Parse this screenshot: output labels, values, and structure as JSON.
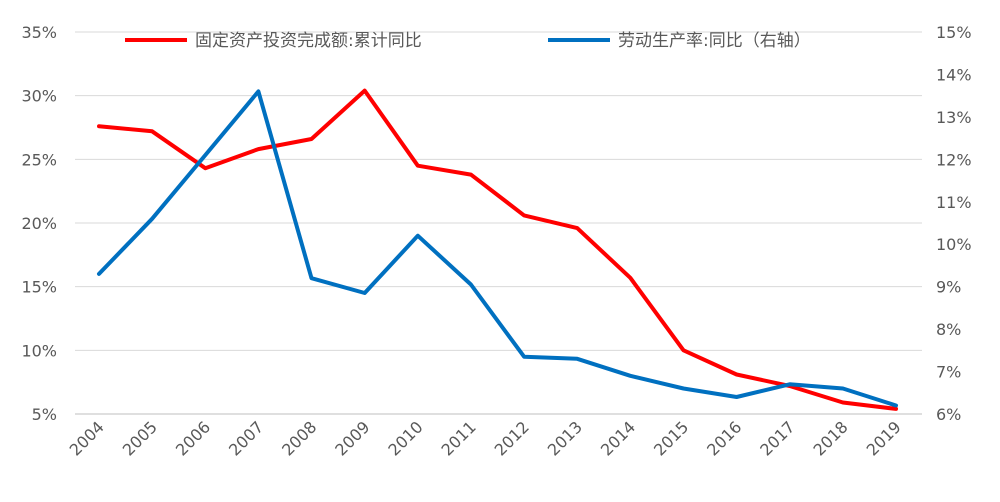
{
  "chart_data": {
    "type": "line",
    "title": "",
    "x": [
      "2004",
      "2005",
      "2006",
      "2007",
      "2008",
      "2009",
      "2010",
      "2011",
      "2012",
      "2013",
      "2014",
      "2015",
      "2016",
      "2017",
      "2018",
      "2019"
    ],
    "series": [
      {
        "name": "固定资产投资完成额:累计同比",
        "axis": "left",
        "color": "#ff0000",
        "values": [
          27.6,
          27.2,
          24.3,
          25.8,
          26.6,
          30.4,
          24.5,
          23.8,
          20.6,
          19.6,
          15.7,
          10.0,
          8.1,
          7.2,
          5.9,
          5.4
        ]
      },
      {
        "name": "劳动生产率:同比（右轴）",
        "axis": "right",
        "color": "#0070c0",
        "values": [
          9.3,
          10.6,
          12.1,
          13.6,
          9.2,
          8.85,
          10.2,
          9.05,
          7.35,
          7.3,
          6.9,
          6.6,
          6.4,
          6.7,
          6.6,
          6.2
        ]
      }
    ],
    "y_left": {
      "min": 5,
      "max": 35,
      "ticks": [
        "5%",
        "10%",
        "15%",
        "20%",
        "25%",
        "30%",
        "35%"
      ]
    },
    "y_right": {
      "min": 6,
      "max": 15,
      "ticks": [
        "6%",
        "7%",
        "8%",
        "9%",
        "10%",
        "11%",
        "12%",
        "13%",
        "14%",
        "15%"
      ]
    },
    "grid": true,
    "legend_position": "top"
  }
}
